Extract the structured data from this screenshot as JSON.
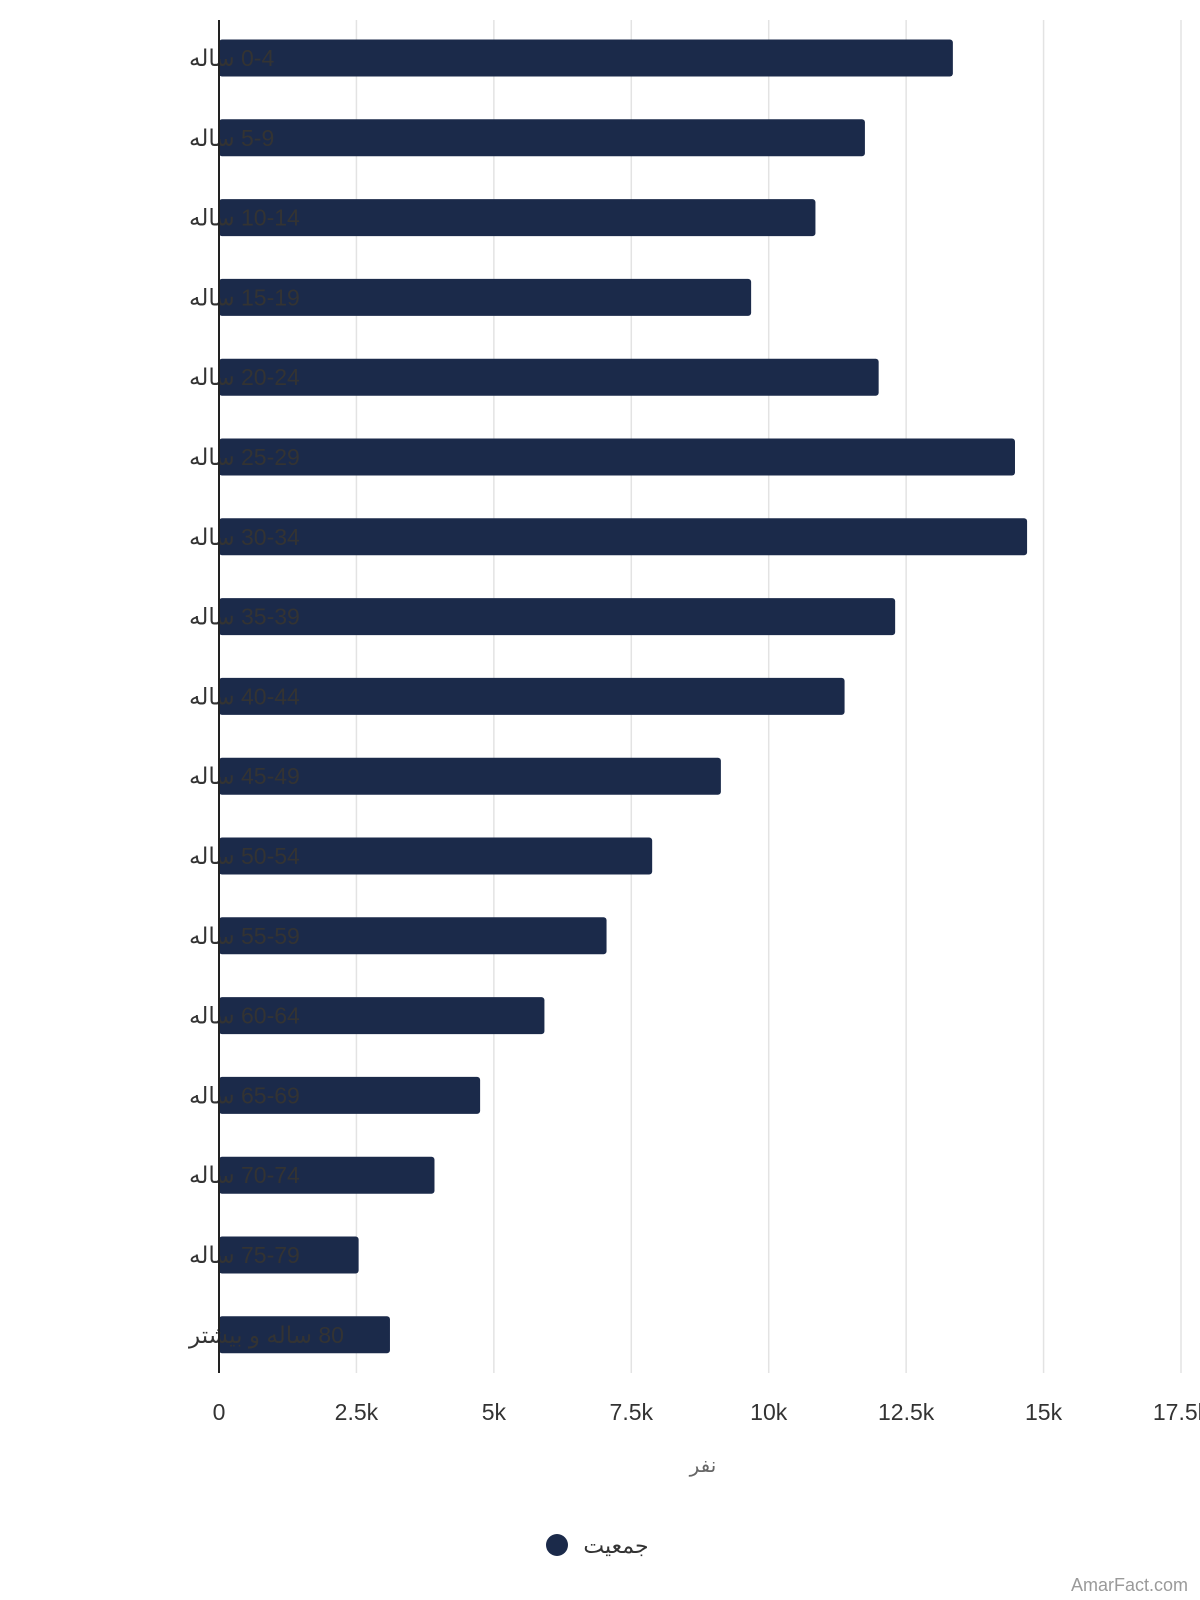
{
  "chart_data": {
    "type": "bar",
    "orientation": "horizontal",
    "categories": [
      "0-4 ساله",
      "5-9 ساله",
      "10-14 ساله",
      "15-19 ساله",
      "20-24 ساله",
      "25-29 ساله",
      "30-34 ساله",
      "35-39 ساله",
      "40-44 ساله",
      "45-49 ساله",
      "50-54 ساله",
      "55-59 ساله",
      "60-64 ساله",
      "65-69 ساله",
      "70-74 ساله",
      "75-79 ساله",
      "80 ساله و بیشتر"
    ],
    "series": [
      {
        "name": "جمعیت",
        "color": "#1b2a4a",
        "values": [
          13350,
          11750,
          10850,
          9680,
          12000,
          14480,
          14700,
          12300,
          11380,
          9130,
          7880,
          7050,
          5920,
          4750,
          3920,
          2540,
          3110
        ]
      }
    ],
    "xlabel": "نفر",
    "xlim": [
      0,
      17500
    ],
    "xticks": [
      0,
      2500,
      5000,
      7500,
      10000,
      12500,
      15000,
      17500
    ],
    "xtick_labels": [
      "0",
      "2.5k",
      "5k",
      "7.5k",
      "10k",
      "12.5k",
      "15k",
      "17.5k"
    ],
    "grid": "vertical",
    "legend_position": "bottom-center"
  },
  "watermark": "AmarFact.com"
}
